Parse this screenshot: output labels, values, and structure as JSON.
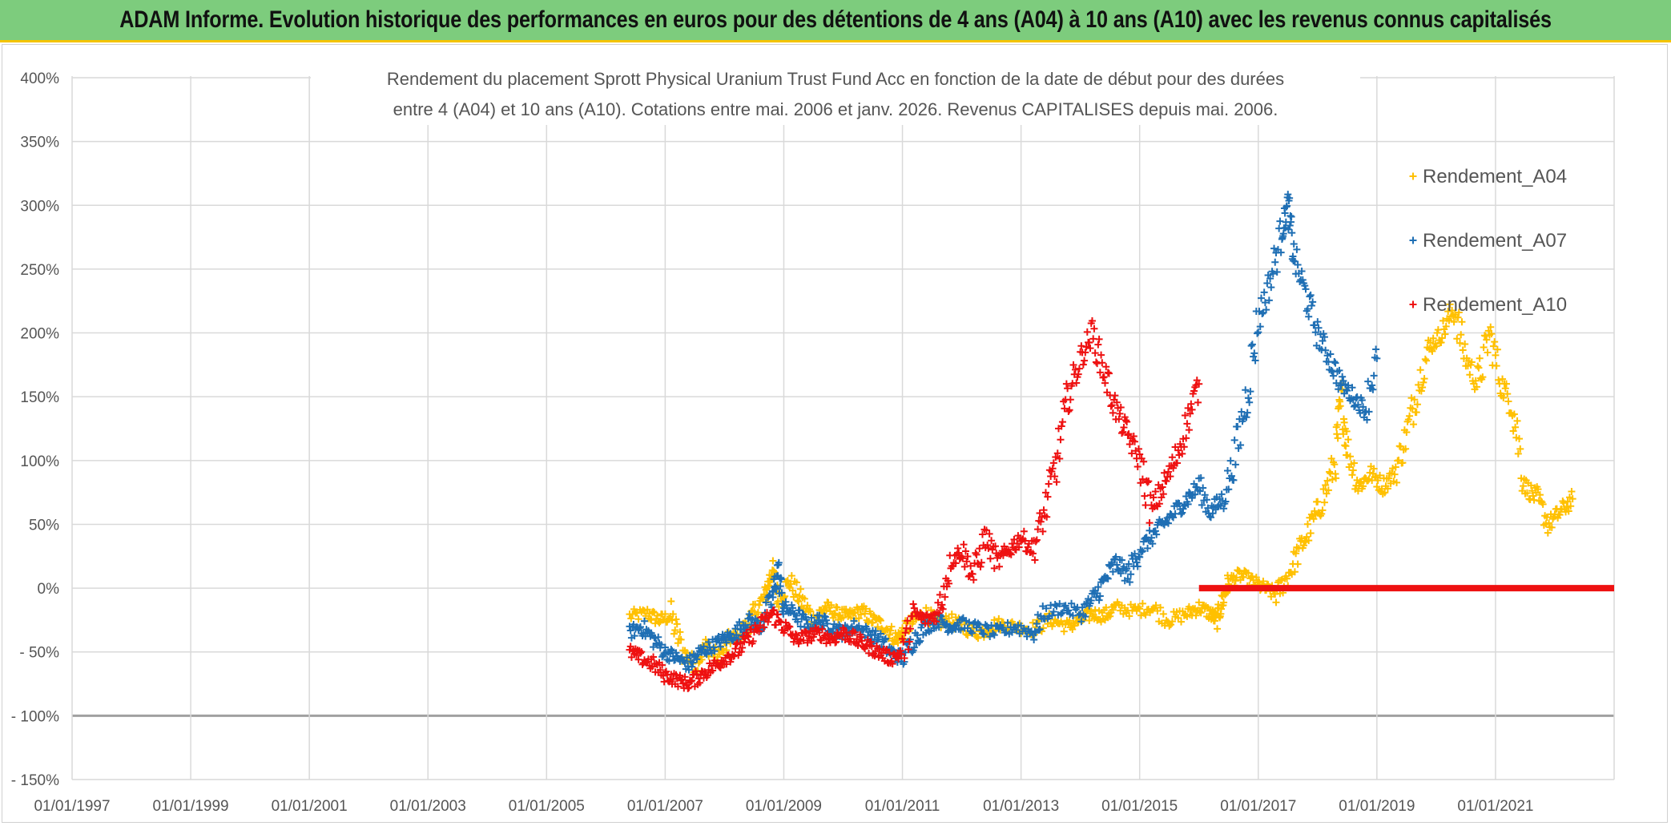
{
  "banner": {
    "title": "ADAM Informe. Evolution historique des performances en euros pour des détentions de 4 ans (A04) à 10 ans (A10) avec les revenus connus capitalisés"
  },
  "chart_data": {
    "type": "scatter",
    "title": "Rendement du placement Sprott Physical Uranium Trust Fund Acc en fonction de la date de début pour des durées",
    "subtitle": "entre 4 (A04) et 10 ans (A10). Cotations entre mai. 2006 et janv. 2026. Revenus CAPITALISES depuis mai. 2006.",
    "xlabel": "",
    "ylabel": "",
    "x_range": [
      1997.0,
      2023.0
    ],
    "ylim": [
      -150,
      400
    ],
    "y_ticks": [
      400,
      350,
      300,
      250,
      200,
      150,
      100,
      50,
      0,
      -50,
      -100,
      -150
    ],
    "y_tick_labels": [
      "400%",
      "350%",
      "300%",
      "250%",
      "200%",
      "150%",
      "100%",
      "50%",
      "0%",
      "- 50%",
      "- 100%",
      "- 150%"
    ],
    "x_ticks": [
      1997,
      1999,
      2001,
      2003,
      2005,
      2007,
      2009,
      2011,
      2013,
      2015,
      2017,
      2019,
      2021
    ],
    "x_tick_labels": [
      "01/01/1997",
      "01/01/1999",
      "01/01/2001",
      "01/01/2003",
      "01/01/2005",
      "01/01/2007",
      "01/01/2009",
      "01/01/2011",
      "01/01/2013",
      "01/01/2015",
      "01/01/2017",
      "01/01/2019",
      "01/01/2021"
    ],
    "gridlines": true,
    "legend_position": "top-right",
    "series": [
      {
        "name": "Rendement_A04",
        "color": "#ffc000",
        "marker": "+",
        "points": [
          [
            2006.4,
            -22
          ],
          [
            2006.7,
            -20
          ],
          [
            2006.9,
            -25
          ],
          [
            2007.1,
            -22
          ],
          [
            2007.3,
            -50
          ],
          [
            2007.5,
            -60
          ],
          [
            2007.7,
            -45
          ],
          [
            2007.9,
            -55
          ],
          [
            2008.1,
            -40
          ],
          [
            2008.3,
            -35
          ],
          [
            2008.5,
            -20
          ],
          [
            2008.7,
            -5
          ],
          [
            2008.8,
            15
          ],
          [
            2008.9,
            -8
          ],
          [
            2009.1,
            5
          ],
          [
            2009.3,
            -10
          ],
          [
            2009.5,
            -25
          ],
          [
            2009.7,
            -15
          ],
          [
            2009.9,
            -20
          ],
          [
            2010.1,
            -22
          ],
          [
            2010.3,
            -18
          ],
          [
            2010.5,
            -25
          ],
          [
            2010.7,
            -30
          ],
          [
            2010.9,
            -40
          ],
          [
            2011.0,
            -35
          ],
          [
            2011.2,
            -25
          ],
          [
            2011.4,
            -20
          ],
          [
            2011.6,
            -28
          ],
          [
            2011.8,
            -25
          ],
          [
            2012.0,
            -30
          ],
          [
            2012.3,
            -35
          ],
          [
            2012.6,
            -28
          ],
          [
            2012.9,
            -30
          ],
          [
            2013.2,
            -32
          ],
          [
            2013.5,
            -25
          ],
          [
            2013.8,
            -30
          ],
          [
            2014.0,
            -25
          ],
          [
            2014.2,
            -20
          ],
          [
            2014.4,
            -22
          ],
          [
            2014.6,
            -15
          ],
          [
            2014.9,
            -18
          ],
          [
            2015.2,
            -15
          ],
          [
            2015.5,
            -25
          ],
          [
            2015.8,
            -20
          ],
          [
            2016.0,
            -15
          ],
          [
            2016.2,
            -20
          ],
          [
            2016.3,
            -25
          ],
          [
            2016.4,
            -10
          ],
          [
            2016.5,
            5
          ],
          [
            2016.7,
            10
          ],
          [
            2016.9,
            5
          ],
          [
            2017.1,
            0
          ],
          [
            2017.3,
            -5
          ],
          [
            2017.5,
            10
          ],
          [
            2017.7,
            30
          ],
          [
            2017.9,
            50
          ],
          [
            2018.1,
            70
          ],
          [
            2018.3,
            100
          ],
          [
            2018.4,
            150
          ],
          [
            2018.5,
            110
          ],
          [
            2018.7,
            80
          ],
          [
            2018.9,
            90
          ],
          [
            2019.1,
            80
          ],
          [
            2019.3,
            90
          ],
          [
            2019.5,
            120
          ],
          [
            2019.7,
            160
          ],
          [
            2019.9,
            190
          ],
          [
            2020.1,
            200
          ],
          [
            2020.3,
            220
          ],
          [
            2020.5,
            180
          ],
          [
            2020.7,
            160
          ],
          [
            2020.9,
            200
          ],
          [
            2021.1,
            160
          ],
          [
            2021.3,
            140
          ],
          [
            2021.5,
            80
          ],
          [
            2021.7,
            70
          ],
          [
            2021.9,
            50
          ],
          [
            2022.1,
            60
          ],
          [
            2022.3,
            70
          ]
        ]
      },
      {
        "name": "Rendement_A07",
        "color": "#1f6fb4",
        "marker": "+",
        "points": [
          [
            2006.4,
            -35
          ],
          [
            2006.6,
            -30
          ],
          [
            2006.8,
            -40
          ],
          [
            2007.0,
            -50
          ],
          [
            2007.2,
            -55
          ],
          [
            2007.4,
            -60
          ],
          [
            2007.6,
            -50
          ],
          [
            2007.8,
            -45
          ],
          [
            2008.0,
            -40
          ],
          [
            2008.2,
            -35
          ],
          [
            2008.4,
            -25
          ],
          [
            2008.6,
            -30
          ],
          [
            2008.8,
            -10
          ],
          [
            2008.9,
            15
          ],
          [
            2009.0,
            -15
          ],
          [
            2009.2,
            -20
          ],
          [
            2009.4,
            -30
          ],
          [
            2009.6,
            -25
          ],
          [
            2009.8,
            -30
          ],
          [
            2010.0,
            -35
          ],
          [
            2010.2,
            -30
          ],
          [
            2010.4,
            -35
          ],
          [
            2010.6,
            -40
          ],
          [
            2010.8,
            -50
          ],
          [
            2011.0,
            -55
          ],
          [
            2011.2,
            -40
          ],
          [
            2011.4,
            -30
          ],
          [
            2011.6,
            -25
          ],
          [
            2011.8,
            -30
          ],
          [
            2012.0,
            -28
          ],
          [
            2012.3,
            -32
          ],
          [
            2012.6,
            -35
          ],
          [
            2012.9,
            -30
          ],
          [
            2013.2,
            -35
          ],
          [
            2013.4,
            -20
          ],
          [
            2013.7,
            -15
          ],
          [
            2014.0,
            -20
          ],
          [
            2014.2,
            -10
          ],
          [
            2014.4,
            5
          ],
          [
            2014.6,
            20
          ],
          [
            2014.8,
            10
          ],
          [
            2015.0,
            30
          ],
          [
            2015.2,
            40
          ],
          [
            2015.4,
            50
          ],
          [
            2015.6,
            60
          ],
          [
            2015.8,
            70
          ],
          [
            2016.0,
            80
          ],
          [
            2016.2,
            60
          ],
          [
            2016.4,
            70
          ],
          [
            2016.6,
            100
          ],
          [
            2016.8,
            150
          ],
          [
            2017.0,
            210
          ],
          [
            2017.2,
            240
          ],
          [
            2017.4,
            280
          ],
          [
            2017.5,
            300
          ],
          [
            2017.6,
            260
          ],
          [
            2017.8,
            230
          ],
          [
            2018.0,
            200
          ],
          [
            2018.2,
            180
          ],
          [
            2018.4,
            160
          ],
          [
            2018.6,
            150
          ],
          [
            2018.8,
            140
          ],
          [
            2019.0,
            180
          ]
        ]
      },
      {
        "name": "Rendement_A10",
        "color": "#ee1111",
        "marker": "+",
        "points": [
          [
            2006.4,
            -50
          ],
          [
            2006.6,
            -55
          ],
          [
            2006.8,
            -60
          ],
          [
            2007.0,
            -68
          ],
          [
            2007.2,
            -72
          ],
          [
            2007.4,
            -75
          ],
          [
            2007.6,
            -68
          ],
          [
            2007.8,
            -62
          ],
          [
            2008.0,
            -55
          ],
          [
            2008.2,
            -50
          ],
          [
            2008.4,
            -40
          ],
          [
            2008.6,
            -30
          ],
          [
            2008.8,
            -20
          ],
          [
            2009.0,
            -30
          ],
          [
            2009.2,
            -40
          ],
          [
            2009.4,
            -38
          ],
          [
            2009.6,
            -35
          ],
          [
            2009.8,
            -40
          ],
          [
            2010.0,
            -35
          ],
          [
            2010.2,
            -40
          ],
          [
            2010.4,
            -45
          ],
          [
            2010.6,
            -50
          ],
          [
            2010.8,
            -55
          ],
          [
            2011.0,
            -50
          ],
          [
            2011.2,
            -20
          ],
          [
            2011.4,
            -25
          ],
          [
            2011.6,
            -20
          ],
          [
            2011.8,
            20
          ],
          [
            2012.0,
            30
          ],
          [
            2012.2,
            10
          ],
          [
            2012.4,
            40
          ],
          [
            2012.6,
            20
          ],
          [
            2012.8,
            30
          ],
          [
            2013.0,
            40
          ],
          [
            2013.2,
            30
          ],
          [
            2013.4,
            60
          ],
          [
            2013.6,
            100
          ],
          [
            2013.8,
            150
          ],
          [
            2014.0,
            180
          ],
          [
            2014.2,
            200
          ],
          [
            2014.4,
            170
          ],
          [
            2014.6,
            140
          ],
          [
            2014.8,
            120
          ],
          [
            2015.0,
            100
          ],
          [
            2015.2,
            60
          ],
          [
            2015.4,
            80
          ],
          [
            2015.6,
            100
          ],
          [
            2015.8,
            130
          ],
          [
            2016.0,
            160
          ]
        ],
        "flat_segment": {
          "from": 2016.0,
          "to": 2023.0,
          "value": 0
        }
      }
    ]
  }
}
